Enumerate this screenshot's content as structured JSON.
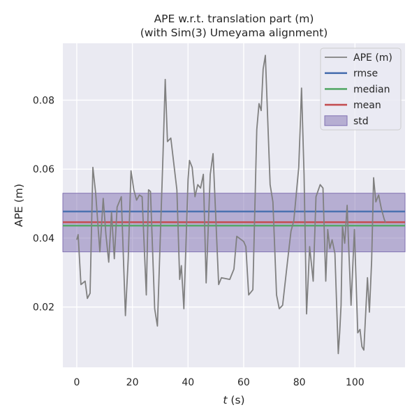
{
  "chart_data": {
    "type": "line",
    "title": [
      "APE w.r.t. translation part (m)",
      "(with Sim(3) Umeyama alignment)"
    ],
    "xlabel_var": "t",
    "xlabel_unit": " (s)",
    "ylabel": "APE (m)",
    "xlim": [
      -5,
      118
    ],
    "ylim": [
      0.0025,
      0.0965
    ],
    "xticks": [
      0,
      20,
      40,
      60,
      80,
      100
    ],
    "yticks": [
      0.02,
      0.04,
      0.06,
      0.08
    ],
    "ytick_labels": [
      "0.02",
      "0.04",
      "0.06",
      "0.08"
    ],
    "grid": true,
    "legend_position": "top-right",
    "background_color": "#EAEAF2",
    "series": [
      {
        "name": "APE (m)",
        "color": "#808080",
        "x": [
          0,
          0.5,
          1.5,
          3,
          3.8,
          4.8,
          5.8,
          6.8,
          8.3,
          9.5,
          10.5,
          11.5,
          12.5,
          13.5,
          14.5,
          16,
          17.5,
          18.5,
          19.5,
          20.5,
          21.5,
          22.5,
          23.5,
          25,
          25.8,
          26.5,
          28,
          29,
          31,
          31.8,
          32.6,
          33.8,
          36,
          37,
          37.6,
          38.5,
          40,
          40.5,
          41.5,
          42.5,
          43.5,
          44.5,
          45.5,
          46.5,
          47.2,
          48,
          49,
          51,
          52,
          55,
          56.5,
          57.5,
          60,
          60.8,
          61.8,
          63.3,
          64.7,
          65.5,
          66.3,
          67,
          67.8,
          69.5,
          70.5,
          71.8,
          72.8,
          74,
          76,
          77,
          78,
          79.8,
          80.8,
          81.7,
          82.6,
          83.7,
          85,
          86,
          87.5,
          88.5,
          89.5,
          90.2,
          91,
          91.8,
          92.8,
          94,
          94.5,
          95,
          95.5,
          96.3,
          97.2,
          97.7,
          98.6,
          99.8,
          101,
          101.8,
          102.5,
          103.2,
          104.5,
          105.2,
          106,
          106.7,
          107.5,
          108.5,
          109.5,
          110.5,
          111
        ],
        "y": [
          0.0395,
          0.041,
          0.0265,
          0.0275,
          0.0225,
          0.024,
          0.0605,
          0.053,
          0.036,
          0.0515,
          0.041,
          0.033,
          0.0475,
          0.034,
          0.049,
          0.052,
          0.0175,
          0.034,
          0.0595,
          0.054,
          0.051,
          0.0525,
          0.052,
          0.0235,
          0.054,
          0.0535,
          0.0195,
          0.0145,
          0.064,
          0.086,
          0.068,
          0.069,
          0.054,
          0.028,
          0.032,
          0.0195,
          0.057,
          0.0625,
          0.0605,
          0.052,
          0.0555,
          0.0545,
          0.0585,
          0.027,
          0.042,
          0.0585,
          0.0645,
          0.0265,
          0.0285,
          0.028,
          0.031,
          0.0405,
          0.039,
          0.0375,
          0.0235,
          0.025,
          0.0715,
          0.079,
          0.077,
          0.089,
          0.093,
          0.0555,
          0.0505,
          0.0235,
          0.0195,
          0.0205,
          0.035,
          0.042,
          0.045,
          0.0605,
          0.0835,
          0.0585,
          0.018,
          0.0375,
          0.0275,
          0.052,
          0.0555,
          0.0545,
          0.0275,
          0.0425,
          0.037,
          0.0395,
          0.0355,
          0.0065,
          0.0125,
          0.0205,
          0.0435,
          0.0385,
          0.0495,
          0.0385,
          0.0205,
          0.0425,
          0.0125,
          0.0135,
          0.0085,
          0.0075,
          0.0285,
          0.0185,
          0.0335,
          0.0575,
          0.0505,
          0.0525,
          0.0485,
          0.0455,
          0.0445
        ]
      },
      {
        "name": "rmse",
        "color": "#4C72B0",
        "value": 0.0477
      },
      {
        "name": "median",
        "color": "#55A868",
        "value": 0.0436
      },
      {
        "name": "mean",
        "color": "#C44E52",
        "value": 0.0446
      },
      {
        "name": "std",
        "color": "#8172B2",
        "range": [
          0.036,
          0.053
        ]
      }
    ]
  }
}
